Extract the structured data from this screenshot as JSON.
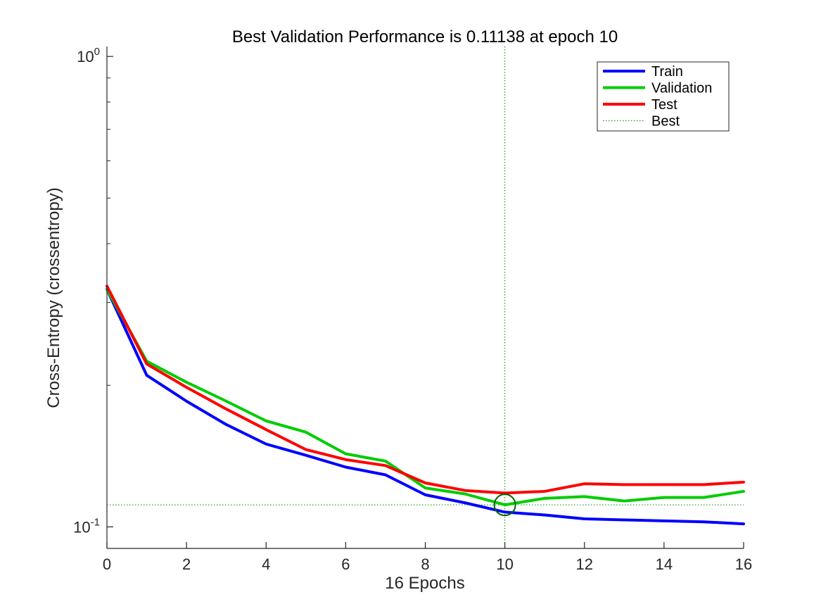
{
  "chart_data": {
    "type": "line",
    "title": "Best Validation Performance is 0.11138 at epoch 10",
    "xlabel": "16 Epochs",
    "ylabel": "Cross-Entropy  (crossentropy)",
    "y_scale": "log",
    "xlim": [
      0,
      16
    ],
    "ylim": [
      0.09,
      1.05
    ],
    "x_ticks": [
      {
        "value": 0,
        "label": "0"
      },
      {
        "value": 2,
        "label": "2"
      },
      {
        "value": 4,
        "label": "4"
      },
      {
        "value": 6,
        "label": "6"
      },
      {
        "value": 8,
        "label": "8"
      },
      {
        "value": 10,
        "label": "10"
      },
      {
        "value": 12,
        "label": "12"
      },
      {
        "value": 14,
        "label": "14"
      },
      {
        "value": 16,
        "label": "16"
      }
    ],
    "y_ticks": [
      {
        "value": 0.1,
        "base": "10",
        "exp": "-1"
      },
      {
        "value": 1,
        "base": "10",
        "exp": "0"
      }
    ],
    "grid": false,
    "legend_position": "top-right",
    "x": [
      0,
      1,
      2,
      3,
      4,
      5,
      6,
      7,
      8,
      9,
      10,
      11,
      12,
      13,
      14,
      15,
      16
    ],
    "series": [
      {
        "name": "Train",
        "color": "#0000ff",
        "style": "solid",
        "values": [
          0.32,
          0.21,
          0.185,
          0.165,
          0.15,
          0.142,
          0.134,
          0.129,
          0.117,
          0.1125,
          0.1075,
          0.106,
          0.104,
          0.1035,
          0.103,
          0.1025,
          0.1015
        ]
      },
      {
        "name": "Validation",
        "color": "#00cc00",
        "style": "solid",
        "values": [
          0.32,
          0.225,
          0.203,
          0.185,
          0.168,
          0.159,
          0.143,
          0.138,
          0.121,
          0.1175,
          0.1114,
          0.115,
          0.116,
          0.1135,
          0.1155,
          0.1155,
          0.119
        ]
      },
      {
        "name": "Test",
        "color": "#ff0000",
        "style": "solid",
        "values": [
          0.325,
          0.222,
          0.198,
          0.178,
          0.161,
          0.146,
          0.139,
          0.135,
          0.124,
          0.1195,
          0.118,
          0.119,
          0.1235,
          0.123,
          0.123,
          0.123,
          0.1245
        ]
      },
      {
        "name": "Best",
        "color": "#008800",
        "style": "dotted"
      }
    ],
    "best": {
      "epoch": 10,
      "value": 0.11138,
      "marker_color": "#006600"
    }
  }
}
